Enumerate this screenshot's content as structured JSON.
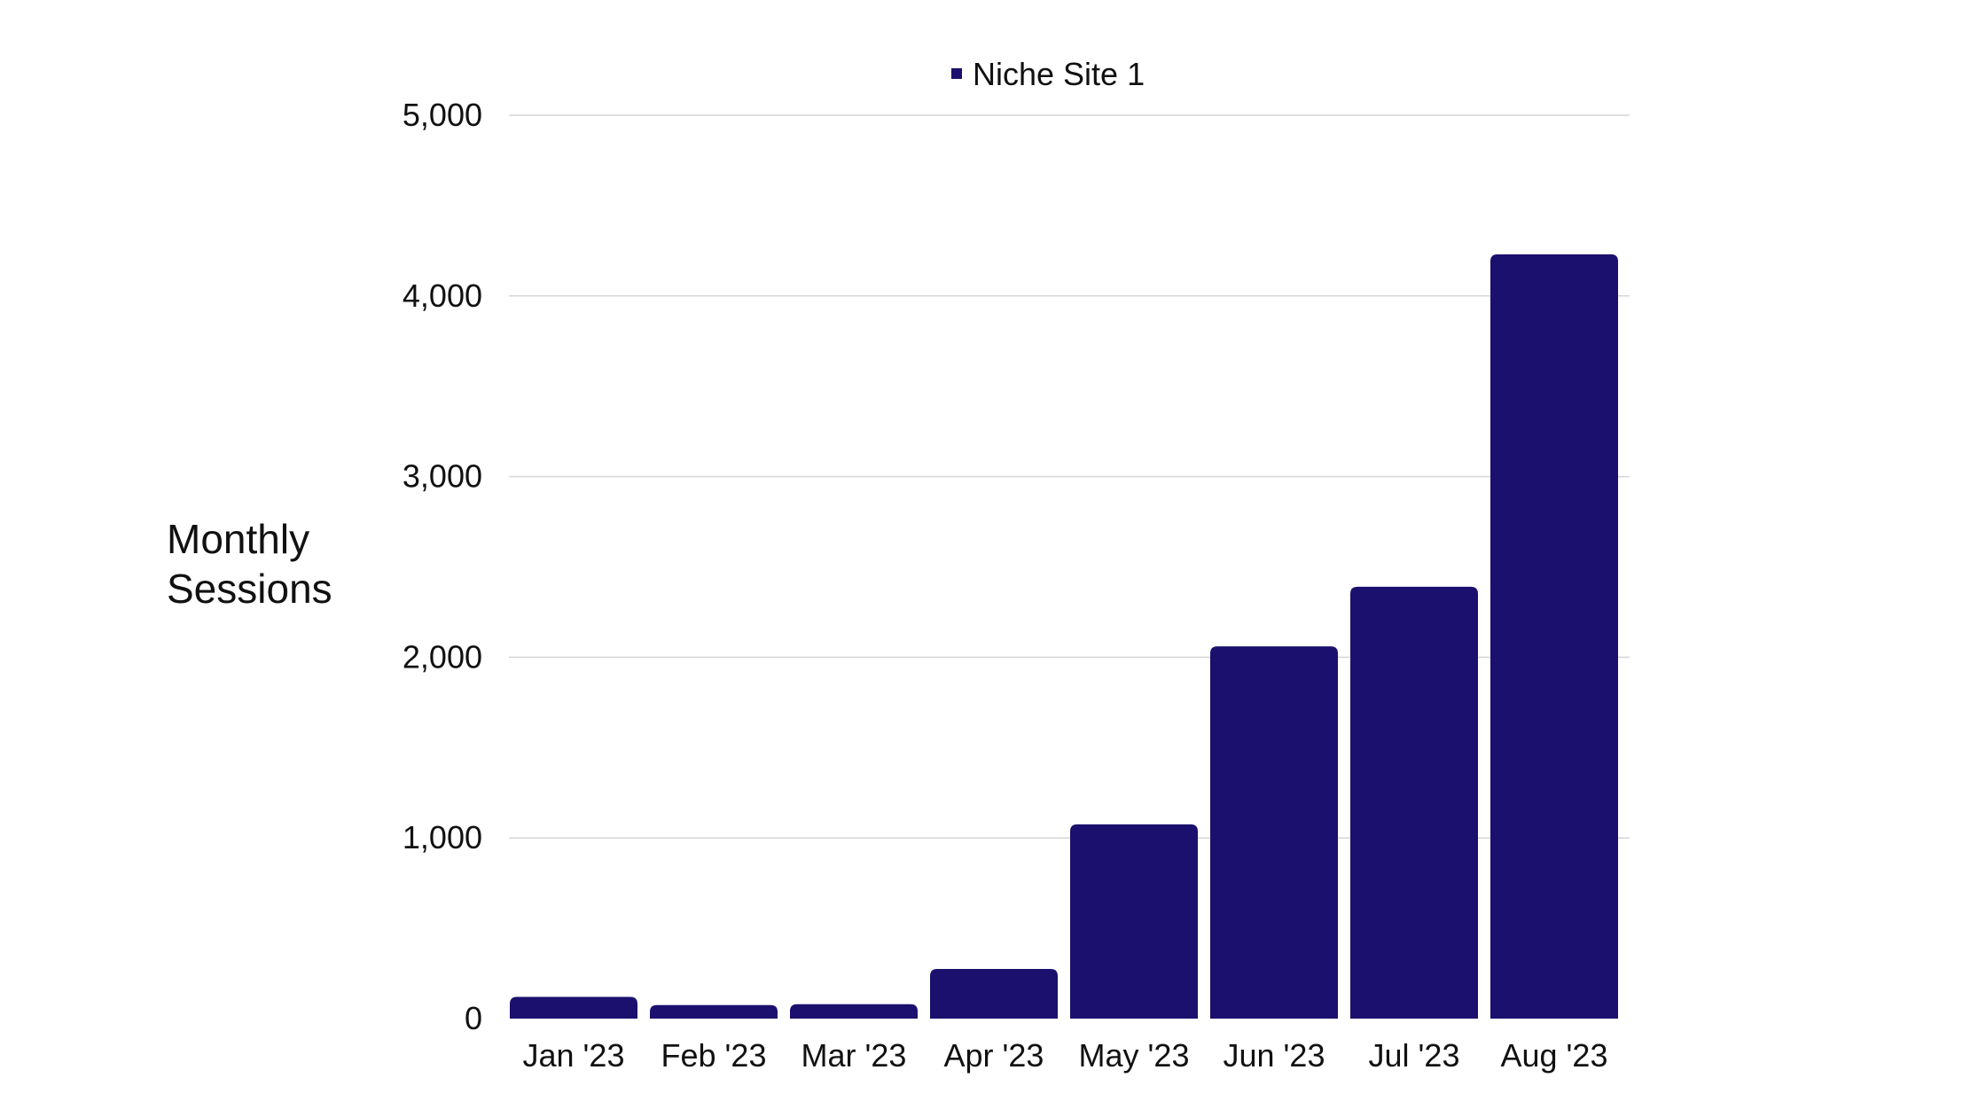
{
  "chart_data": {
    "type": "bar",
    "categories": [
      "Jan '23",
      "Feb '23",
      "Mar '23",
      "Apr '23",
      "May '23",
      "Jun '23",
      "Jul '23",
      "Aug '23"
    ],
    "series": [
      {
        "name": "Niche Site 1",
        "color": "#1b106e",
        "values": [
          120,
          75,
          80,
          275,
          1075,
          2060,
          2390,
          4230
        ]
      }
    ],
    "ylabel": [
      "Monthly",
      "Sessions"
    ],
    "ylim": [
      0,
      5000
    ],
    "yticks": [
      "0",
      "1,000",
      "2,000",
      "3,000",
      "4,000",
      "5,000"
    ],
    "ytick_values": [
      0,
      1000,
      2000,
      3000,
      4000,
      5000
    ],
    "grid": true,
    "legend_position": "top-center"
  }
}
